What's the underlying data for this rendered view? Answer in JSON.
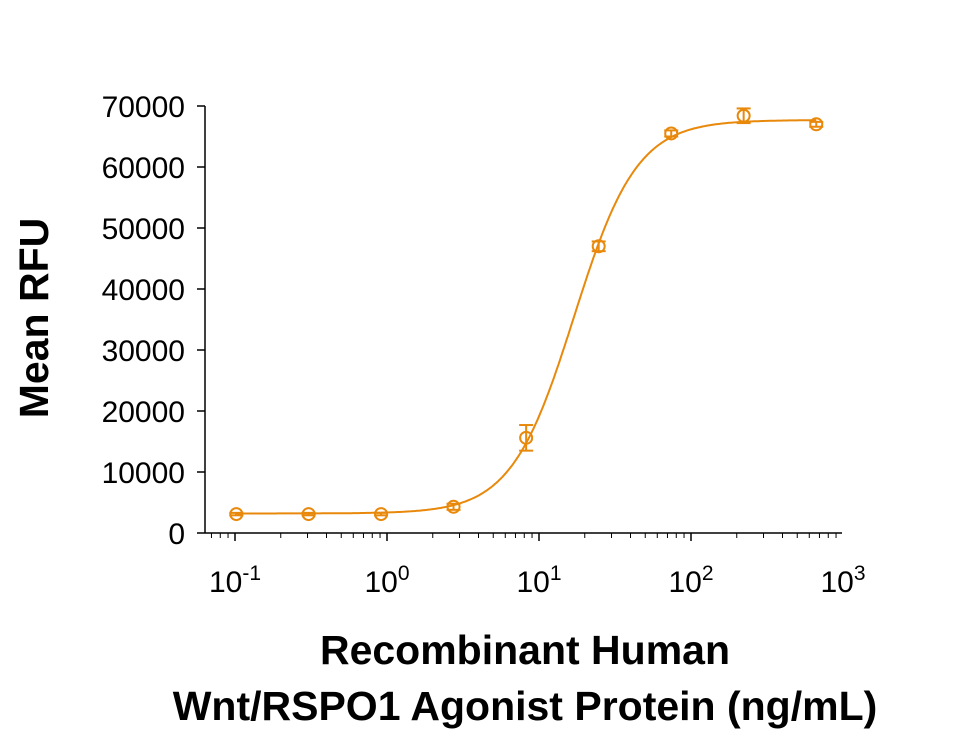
{
  "chart_data": {
    "type": "scatter",
    "xlabel_lines": [
      "Recombinant Human",
      "Wnt/RSPO1 Agonist Protein (ng/mL)"
    ],
    "ylabel": "Mean RFU",
    "x_scale": "log",
    "xlim": [
      0.06,
      1000
    ],
    "ylim": [
      0,
      70000
    ],
    "x_ticks": [
      {
        "base": "10",
        "exp": "-1",
        "value": 0.1
      },
      {
        "base": "10",
        "exp": "0",
        "value": 1
      },
      {
        "base": "10",
        "exp": "1",
        "value": 10
      },
      {
        "base": "10",
        "exp": "2",
        "value": 100
      },
      {
        "base": "10",
        "exp": "3",
        "value": 1000
      }
    ],
    "y_ticks": [
      "0",
      "10000",
      "20000",
      "30000",
      "40000",
      "50000",
      "60000",
      "70000"
    ],
    "grid": false,
    "color": "#E8890C",
    "marker": "open-circle",
    "points": [
      {
        "x": 0.102,
        "y": 3100,
        "err": 200
      },
      {
        "x": 0.305,
        "y": 3100,
        "err": 200
      },
      {
        "x": 0.914,
        "y": 3100,
        "err": 200
      },
      {
        "x": 2.74,
        "y": 4300,
        "err": 500
      },
      {
        "x": 8.23,
        "y": 15600,
        "err": 2100
      },
      {
        "x": 24.7,
        "y": 47000,
        "err": 800
      },
      {
        "x": 74.1,
        "y": 65500,
        "err": 500
      },
      {
        "x": 222,
        "y": 68400,
        "err": 1200
      },
      {
        "x": 667,
        "y": 67000,
        "err": 400
      }
    ],
    "fit": {
      "model": "4PL",
      "bottom": 3200,
      "top": 67700,
      "ec50": 17,
      "hill": 2.1
    }
  }
}
